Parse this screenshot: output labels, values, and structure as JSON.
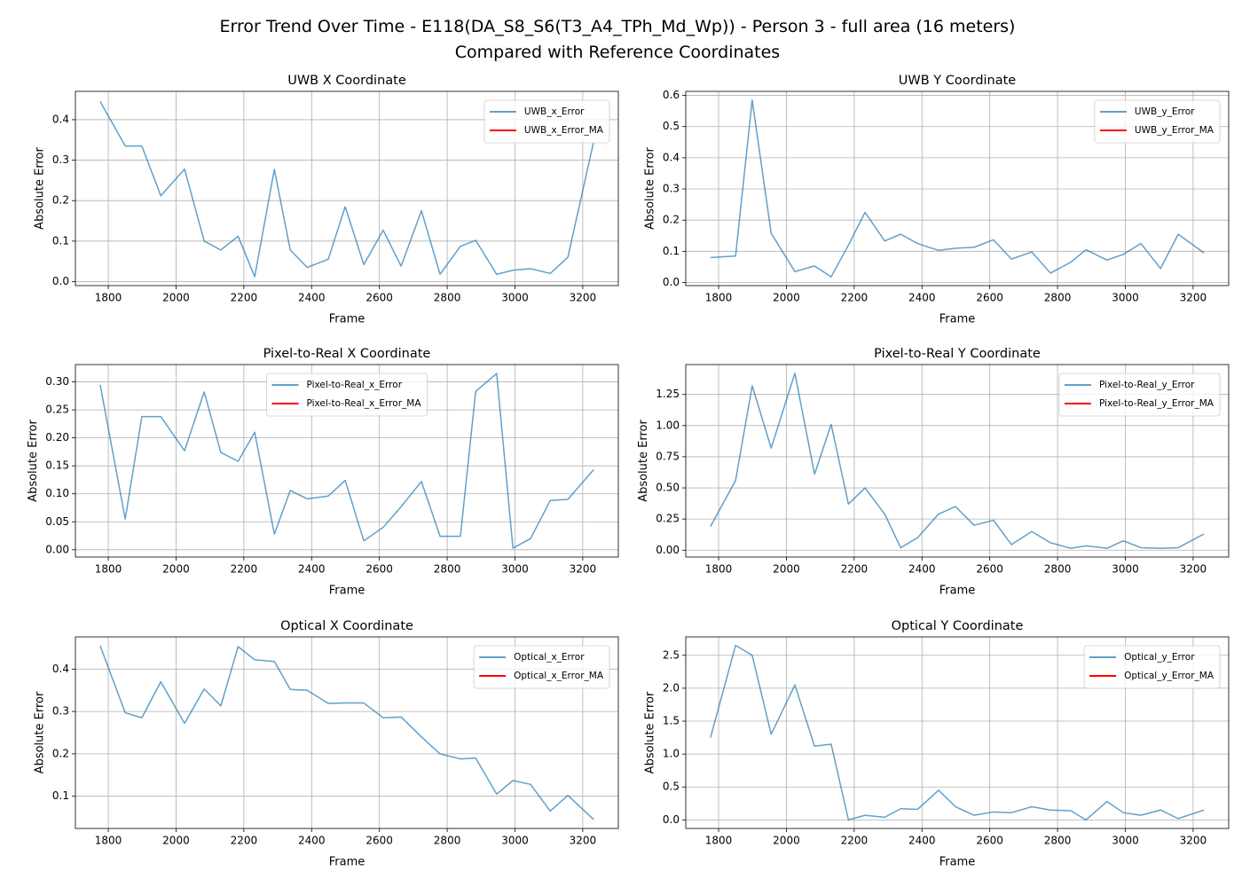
{
  "title": "Error Trend Over Time - E118(DA_S8_S6(T3_A4_TPh_Md_Wp)) - Person 3 - full area (16 meters)\nCompared with Reference Coordinates",
  "chart_data": [
    {
      "type": "line",
      "title": "UWB X Coordinate",
      "x_label": "Frame",
      "y_label": "Absolute Error",
      "grid": true,
      "legend": "upper right",
      "x": [
        1776,
        1850,
        1899,
        1955,
        2025,
        2083,
        2132,
        2183,
        2232,
        2290,
        2337,
        2387,
        2449,
        2499,
        2554,
        2611,
        2664,
        2724,
        2779,
        2839,
        2884,
        2946,
        2994,
        3046,
        3104,
        3156,
        3232
      ],
      "series": [
        {
          "name": "UWB_x_Error",
          "color": "#1f77b4",
          "values": [
            0.445,
            0.335,
            0.335,
            0.212,
            0.278,
            0.1,
            0.078,
            0.112,
            0.012,
            0.277,
            0.078,
            0.035,
            0.055,
            0.185,
            0.042,
            0.127,
            0.038,
            0.175,
            0.018,
            0.087,
            0.102,
            0.018,
            0.028,
            0.032,
            0.02,
            0.06,
            0.345
          ]
        },
        {
          "name": "UWB_x_Error_MA",
          "color": "#ff0000",
          "values": [
            null,
            null,
            null,
            null,
            null,
            null,
            null,
            null,
            null,
            null,
            null,
            null,
            null,
            null,
            null,
            null,
            null,
            null,
            null,
            null,
            null,
            null,
            null,
            null,
            null,
            null,
            null
          ]
        }
      ],
      "xlim": [
        1703,
        3305
      ],
      "xticks": [
        1800,
        2000,
        2200,
        2400,
        2600,
        2800,
        3000,
        3200
      ],
      "ylim": [
        -0.01,
        0.47
      ],
      "yticks": [
        {
          "value": 0,
          "label": "0.0"
        },
        0.1,
        0.2,
        0.3,
        0.4
      ]
    },
    {
      "type": "line",
      "title": "UWB Y Coordinate",
      "x_label": "Frame",
      "y_label": "Absolute Error",
      "grid": true,
      "legend": "upper right",
      "x": [
        1776,
        1850,
        1899,
        1955,
        2025,
        2083,
        2132,
        2183,
        2232,
        2290,
        2337,
        2387,
        2449,
        2499,
        2554,
        2611,
        2664,
        2724,
        2779,
        2839,
        2884,
        2946,
        2994,
        3046,
        3104,
        3156,
        3232
      ],
      "series": [
        {
          "name": "UWB_y_Error",
          "color": "#1f77b4",
          "values": [
            0.08,
            0.085,
            0.585,
            0.158,
            0.035,
            0.053,
            0.018,
            0.12,
            0.225,
            0.133,
            0.155,
            0.125,
            0.103,
            0.11,
            0.113,
            0.137,
            0.075,
            0.098,
            0.03,
            0.065,
            0.105,
            0.072,
            0.09,
            0.125,
            0.045,
            0.155,
            0.095
          ]
        },
        {
          "name": "UWB_y_Error_MA",
          "color": "#ff0000",
          "values": [
            null,
            null,
            null,
            null,
            null,
            null,
            null,
            null,
            null,
            null,
            null,
            null,
            null,
            null,
            null,
            null,
            null,
            null,
            null,
            null,
            null,
            null,
            null,
            null,
            null,
            null,
            null
          ]
        }
      ],
      "xlim": [
        1703,
        3305
      ],
      "xticks": [
        1800,
        2000,
        2200,
        2400,
        2600,
        2800,
        3000,
        3200
      ],
      "ylim": [
        -0.01,
        0.613
      ],
      "yticks": [
        {
          "value": 0,
          "label": "0.0"
        },
        0.1,
        0.2,
        0.3,
        0.4,
        0.5,
        0.6
      ]
    },
    {
      "type": "line",
      "title": "Pixel-to-Real X Coordinate",
      "x_label": "Frame",
      "y_label": "Absolute Error",
      "grid": true,
      "legend": "upper center",
      "x": [
        1776,
        1850,
        1899,
        1955,
        2025,
        2083,
        2132,
        2183,
        2232,
        2290,
        2337,
        2387,
        2449,
        2499,
        2554,
        2611,
        2664,
        2724,
        2779,
        2839,
        2884,
        2946,
        2994,
        3046,
        3104,
        3156,
        3232
      ],
      "series": [
        {
          "name": "Pixel-to-Real_x_Error",
          "color": "#1f77b4",
          "values": [
            0.295,
            0.055,
            0.238,
            0.238,
            0.177,
            0.282,
            0.174,
            0.158,
            0.21,
            0.028,
            0.106,
            0.091,
            0.096,
            0.124,
            0.016,
            0.04,
            0.077,
            0.122,
            0.024,
            0.024,
            0.283,
            0.315,
            0.003,
            0.02,
            0.088,
            0.09,
            0.143
          ]
        },
        {
          "name": "Pixel-to-Real_x_Error_MA",
          "color": "#ff0000",
          "values": [
            null,
            null,
            null,
            null,
            null,
            null,
            null,
            null,
            null,
            null,
            null,
            null,
            null,
            null,
            null,
            null,
            null,
            null,
            null,
            null,
            null,
            null,
            null,
            null,
            null,
            null,
            null
          ]
        }
      ],
      "xlim": [
        1703,
        3305
      ],
      "xticks": [
        1800,
        2000,
        2200,
        2400,
        2600,
        2800,
        3000,
        3200
      ],
      "ylim": [
        -0.013,
        0.331
      ],
      "yticks": [
        {
          "value": 0,
          "label": "0.00"
        },
        0.05,
        {
          "value": 0.1,
          "label": "0.10"
        },
        0.15,
        {
          "value": 0.2,
          "label": "0.20"
        },
        0.25,
        {
          "value": 0.3,
          "label": "0.30"
        }
      ]
    },
    {
      "type": "line",
      "title": "Pixel-to-Real Y Coordinate",
      "x_label": "Frame",
      "y_label": "Absolute Error",
      "grid": true,
      "legend": "upper right",
      "x": [
        1776,
        1850,
        1899,
        1955,
        2025,
        2083,
        2132,
        2183,
        2232,
        2290,
        2337,
        2387,
        2449,
        2499,
        2554,
        2611,
        2664,
        2724,
        2779,
        2839,
        2884,
        2946,
        2994,
        3046,
        3104,
        3156,
        3232
      ],
      "series": [
        {
          "name": "Pixel-to-Real_y_Error",
          "color": "#1f77b4",
          "values": [
            0.19,
            0.56,
            1.32,
            0.82,
            1.42,
            0.61,
            1.01,
            0.37,
            0.5,
            0.29,
            0.02,
            0.1,
            0.29,
            0.35,
            0.2,
            0.24,
            0.045,
            0.15,
            0.06,
            0.015,
            0.035,
            0.015,
            0.075,
            0.02,
            0.015,
            0.02,
            0.13
          ]
        },
        {
          "name": "Pixel-to-Real_y_Error_MA",
          "color": "#ff0000",
          "values": [
            null,
            null,
            null,
            null,
            null,
            null,
            null,
            null,
            null,
            null,
            null,
            null,
            null,
            null,
            null,
            null,
            null,
            null,
            null,
            null,
            null,
            null,
            null,
            null,
            null,
            null,
            null
          ]
        }
      ],
      "xlim": [
        1703,
        3305
      ],
      "xticks": [
        1800,
        2000,
        2200,
        2400,
        2600,
        2800,
        3000,
        3200
      ],
      "ylim": [
        -0.055,
        1.49
      ],
      "yticks": [
        {
          "value": 0,
          "label": "0.00"
        },
        0.25,
        {
          "value": 0.5,
          "label": "0.50"
        },
        0.75,
        {
          "value": 1,
          "label": "1.00"
        },
        1.25
      ]
    },
    {
      "type": "line",
      "title": "Optical X Coordinate",
      "x_label": "Frame",
      "y_label": "Absolute Error",
      "grid": true,
      "legend": "upper right",
      "x": [
        1776,
        1850,
        1899,
        1955,
        2025,
        2083,
        2132,
        2183,
        2232,
        2290,
        2337,
        2387,
        2449,
        2499,
        2554,
        2611,
        2664,
        2724,
        2779,
        2839,
        2884,
        2946,
        2994,
        3046,
        3104,
        3156,
        3232
      ],
      "series": [
        {
          "name": "Optical_x_Error",
          "color": "#1f77b4",
          "values": [
            0.455,
            0.297,
            0.285,
            0.37,
            0.272,
            0.353,
            0.313,
            0.453,
            0.422,
            0.418,
            0.352,
            0.35,
            0.319,
            0.32,
            0.32,
            0.285,
            0.287,
            0.24,
            0.2,
            0.188,
            0.19,
            0.105,
            0.137,
            0.128,
            0.065,
            0.102,
            0.045
          ]
        },
        {
          "name": "Optical_x_Error_MA",
          "color": "#ff0000",
          "values": [
            null,
            null,
            null,
            null,
            null,
            null,
            null,
            null,
            null,
            null,
            null,
            null,
            null,
            null,
            null,
            null,
            null,
            null,
            null,
            null,
            null,
            null,
            null,
            null,
            null,
            null,
            null
          ]
        }
      ],
      "xlim": [
        1703,
        3305
      ],
      "xticks": [
        1800,
        2000,
        2200,
        2400,
        2600,
        2800,
        3000,
        3200
      ],
      "ylim": [
        0.024,
        0.476
      ],
      "yticks": [
        0.1,
        0.2,
        0.3,
        0.4
      ]
    },
    {
      "type": "line",
      "title": "Optical Y Coordinate",
      "x_label": "Frame",
      "y_label": "Absolute Error",
      "grid": true,
      "legend": "upper right",
      "x": [
        1776,
        1850,
        1899,
        1955,
        2025,
        2083,
        2132,
        2183,
        2232,
        2290,
        2337,
        2387,
        2449,
        2499,
        2554,
        2611,
        2664,
        2724,
        2779,
        2839,
        2884,
        2946,
        2994,
        3046,
        3104,
        3156,
        3232
      ],
      "series": [
        {
          "name": "Optical_y_Error",
          "color": "#1f77b4",
          "values": [
            1.25,
            2.65,
            2.5,
            1.3,
            2.05,
            1.12,
            1.15,
            0.0,
            0.07,
            0.04,
            0.17,
            0.16,
            0.45,
            0.2,
            0.07,
            0.12,
            0.11,
            0.2,
            0.15,
            0.14,
            0.0,
            0.28,
            0.11,
            0.07,
            0.15,
            0.02,
            0.15
          ]
        },
        {
          "name": "Optical_y_Error_MA",
          "color": "#ff0000",
          "values": [
            null,
            null,
            null,
            null,
            null,
            null,
            null,
            null,
            null,
            null,
            null,
            null,
            null,
            null,
            null,
            null,
            null,
            null,
            null,
            null,
            null,
            null,
            null,
            null,
            null,
            null,
            null
          ]
        }
      ],
      "xlim": [
        1703,
        3305
      ],
      "xticks": [
        1800,
        2000,
        2200,
        2400,
        2600,
        2800,
        3000,
        3200
      ],
      "ylim": [
        -0.13,
        2.78
      ],
      "yticks": [
        {
          "value": 0,
          "label": "0.0"
        },
        {
          "value": 0.5,
          "label": "0.5"
        },
        {
          "value": 1,
          "label": "1.0"
        },
        {
          "value": 1.5,
          "label": "1.5"
        },
        {
          "value": 2,
          "label": "2.0"
        },
        {
          "value": 2.5,
          "label": "2.5"
        }
      ]
    }
  ]
}
